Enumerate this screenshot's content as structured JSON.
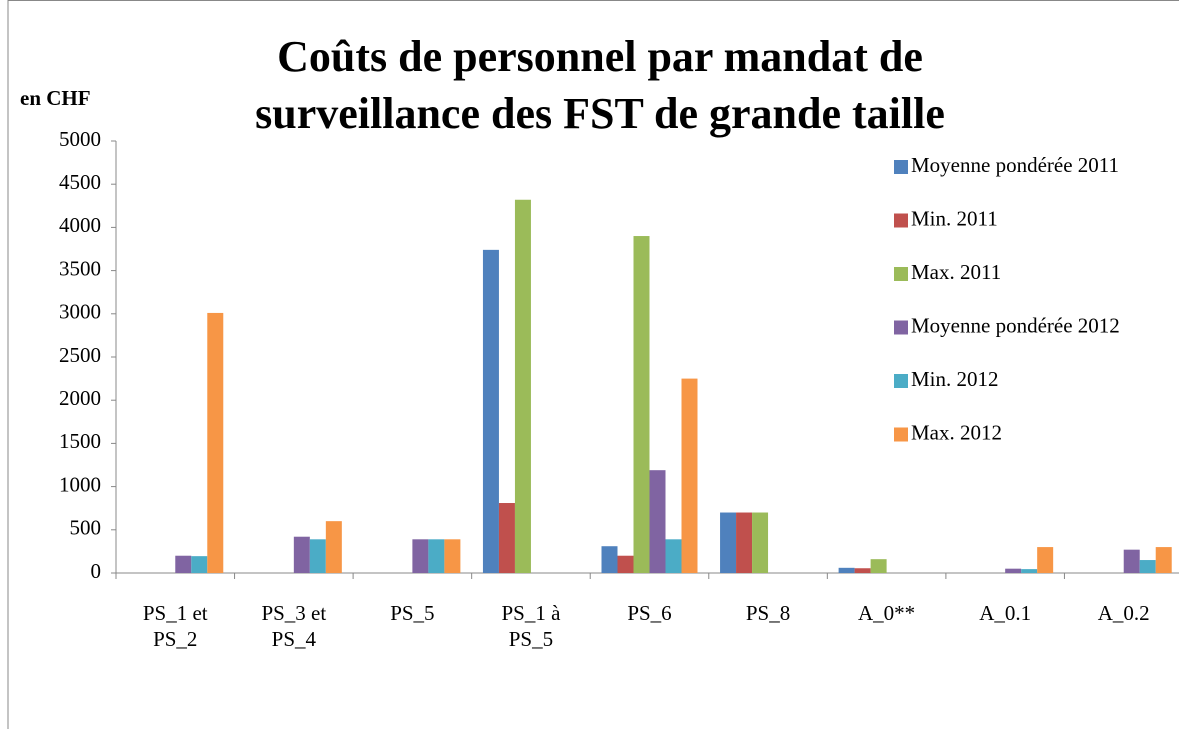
{
  "chart_data": {
    "type": "bar",
    "title": "Coûts de personnel par mandat de surveillance des FST de grande taille",
    "y_label": "en CHF",
    "categories": [
      "PS_1 et PS_2",
      "PS_3 et PS_4",
      "PS_5",
      "PS_1 à PS_5",
      "PS_6",
      "PS_8",
      "A_0**",
      "A_0.1",
      "A_0.2"
    ],
    "series": [
      {
        "name": "Moyenne pondérée 2011",
        "color": "#4f81bd",
        "values": [
          0,
          0,
          0,
          3740,
          310,
          700,
          60,
          0,
          0
        ]
      },
      {
        "name": "Min. 2011",
        "color": "#c0504d",
        "values": [
          0,
          0,
          0,
          810,
          200,
          700,
          55,
          0,
          0
        ]
      },
      {
        "name": "Max. 2011",
        "color": "#9bbb59",
        "values": [
          0,
          0,
          0,
          4320,
          3900,
          700,
          160,
          0,
          0
        ]
      },
      {
        "name": "Moyenne pondérée 2012",
        "color": "#8064a2",
        "values": [
          200,
          420,
          390,
          0,
          1190,
          0,
          0,
          50,
          270
        ]
      },
      {
        "name": "Min. 2012",
        "color": "#4bacc6",
        "values": [
          195,
          390,
          390,
          0,
          390,
          0,
          0,
          45,
          150
        ]
      },
      {
        "name": "Max. 2012",
        "color": "#f79646",
        "values": [
          3010,
          600,
          390,
          0,
          2250,
          0,
          0,
          300,
          300
        ]
      }
    ],
    "ylim": [
      0,
      5000
    ],
    "yticks": [
      0,
      500,
      1000,
      1500,
      2000,
      2500,
      3000,
      3500,
      4000,
      4500,
      5000
    ],
    "legend": "right",
    "grid": false
  }
}
